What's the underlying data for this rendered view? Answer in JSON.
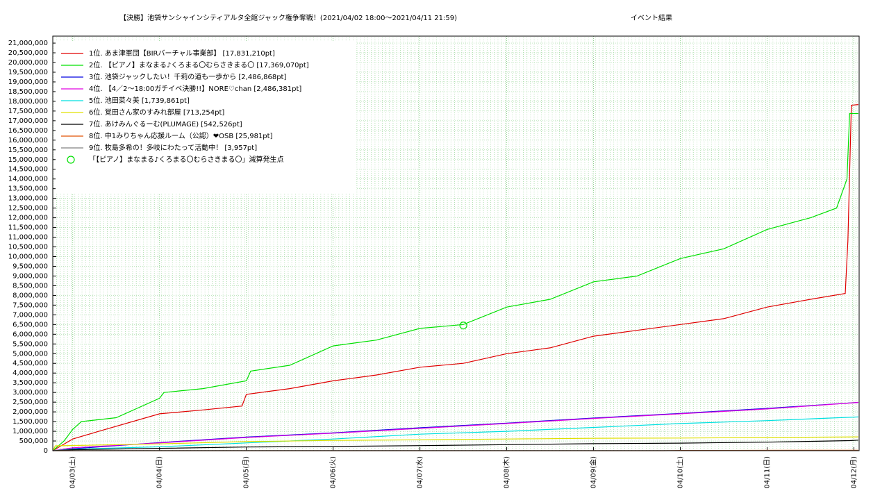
{
  "chart_data": {
    "type": "line",
    "title": "【決勝】池袋サンシャインシティアルタ全館ジャック権争奪戦！(2021/04/02 18:00〜2021/04/11 21:59)",
    "subtitle": "イベント結果",
    "xlim": [
      -0.23,
      9.06
    ],
    "xticks": [
      {
        "value": 0,
        "label": "04/03(土)"
      },
      {
        "value": 1,
        "label": "04/04(日)"
      },
      {
        "value": 2,
        "label": "04/05(月)"
      },
      {
        "value": 3,
        "label": "04/06(火)"
      },
      {
        "value": 4,
        "label": "04/07(水)"
      },
      {
        "value": 5,
        "label": "04/08(木)"
      },
      {
        "value": 6,
        "label": "04/09(金)"
      },
      {
        "value": 7,
        "label": "04/10(土)"
      },
      {
        "value": 8,
        "label": "04/11(日)"
      },
      {
        "value": 9,
        "label": "04/12(月)"
      }
    ],
    "ylim": [
      0,
      21360000
    ],
    "yticks": [
      {
        "value": 0,
        "label": "0"
      },
      {
        "value": 500000,
        "label": "500,000"
      },
      {
        "value": 1000000,
        "label": "1,000,000"
      },
      {
        "value": 1500000,
        "label": "1,500,000"
      },
      {
        "value": 2000000,
        "label": "2,000,000"
      },
      {
        "value": 2500000,
        "label": "2,500,000"
      },
      {
        "value": 3000000,
        "label": "3,000,000"
      },
      {
        "value": 3500000,
        "label": "3,500,000"
      },
      {
        "value": 4000000,
        "label": "4,000,000"
      },
      {
        "value": 4500000,
        "label": "4,500,000"
      },
      {
        "value": 5000000,
        "label": "5,000,000"
      },
      {
        "value": 5500000,
        "label": "5,500,000"
      },
      {
        "value": 6000000,
        "label": "6,000,000"
      },
      {
        "value": 6500000,
        "label": "6,500,000"
      },
      {
        "value": 7000000,
        "label": "7,000,000"
      },
      {
        "value": 7500000,
        "label": "7,500,000"
      },
      {
        "value": 8000000,
        "label": "8,000,000"
      },
      {
        "value": 8500000,
        "label": "8,500,000"
      },
      {
        "value": 9000000,
        "label": "9,000,000"
      },
      {
        "value": 9500000,
        "label": "9,500,000"
      },
      {
        "value": 10000000,
        "label": "10,000,000"
      },
      {
        "value": 10500000,
        "label": "10,500,000"
      },
      {
        "value": 11000000,
        "label": "11,000,000"
      },
      {
        "value": 11500000,
        "label": "11,500,000"
      },
      {
        "value": 12000000,
        "label": "12,000,000"
      },
      {
        "value": 12500000,
        "label": "12,500,000"
      },
      {
        "value": 13000000,
        "label": "13,000,000"
      },
      {
        "value": 13500000,
        "label": "13,500,000"
      },
      {
        "value": 14000000,
        "label": "14,000,000"
      },
      {
        "value": 14500000,
        "label": "14,500,000"
      },
      {
        "value": 15000000,
        "label": "15,000,000"
      },
      {
        "value": 15500000,
        "label": "15,500,000"
      },
      {
        "value": 16000000,
        "label": "16,000,000"
      },
      {
        "value": 16500000,
        "label": "16,500,000"
      },
      {
        "value": 17000000,
        "label": "17,000,000"
      },
      {
        "value": 17500000,
        "label": "17,500,000"
      },
      {
        "value": 18000000,
        "label": "18,000,000"
      },
      {
        "value": 18500000,
        "label": "18,500,000"
      },
      {
        "value": 19000000,
        "label": "19,000,000"
      },
      {
        "value": 19500000,
        "label": "19,500,000"
      },
      {
        "value": 20000000,
        "label": "20,000,000"
      },
      {
        "value": 20500000,
        "label": "20,500,000"
      },
      {
        "value": 21000000,
        "label": "21,000,000"
      }
    ],
    "grid": true,
    "legend": "top-left",
    "series": [
      {
        "name": "1位. あま津軍団【BIRバーチャル事業部】 [17,831,210pt]",
        "color": "#e00000",
        "x": [
          -0.23,
          0,
          0.3,
          1.0,
          1.5,
          1.95,
          2.0,
          2.5,
          3.0,
          3.5,
          4.0,
          4.5,
          5.0,
          5.5,
          6.0,
          6.5,
          7.0,
          7.5,
          8.0,
          8.5,
          8.9,
          8.93,
          8.97,
          9.05
        ],
        "values": [
          0,
          600000,
          1000000,
          1900000,
          2100000,
          2300000,
          2900000,
          3200000,
          3600000,
          3900000,
          4300000,
          4500000,
          5000000,
          5300000,
          5900000,
          6200000,
          6500000,
          6800000,
          7400000,
          7800000,
          8100000,
          10800000,
          17800000,
          17831210
        ]
      },
      {
        "name": "2位. 【ピアノ】まなまる♪くろまる〇むらさきまる〇 [17,369,070pt]",
        "color": "#00e000",
        "x": [
          -0.23,
          -0.1,
          0,
          0.1,
          0.5,
          1.0,
          1.05,
          1.5,
          2.0,
          2.05,
          2.5,
          3.0,
          3.5,
          4.0,
          4.5,
          5.0,
          5.5,
          6.0,
          6.5,
          7.0,
          7.5,
          8.0,
          8.5,
          8.8,
          8.92,
          8.95,
          9.05
        ],
        "values": [
          0,
          500000,
          1100000,
          1500000,
          1700000,
          2700000,
          3000000,
          3200000,
          3600000,
          4100000,
          4400000,
          5400000,
          5700000,
          6300000,
          6500000,
          7400000,
          7800000,
          8700000,
          9000000,
          9900000,
          10400000,
          11400000,
          12000000,
          12500000,
          14000000,
          17369070,
          17369070
        ]
      },
      {
        "name": "3位. 池袋ジャックしたい！千莉の道も一歩から [2,486,868pt]",
        "color": "#0000e0",
        "x": [
          -0.23,
          0,
          1,
          2,
          3,
          4,
          5,
          6,
          7,
          8,
          9.05
        ],
        "values": [
          0,
          100000,
          420000,
          700000,
          920000,
          1180000,
          1420000,
          1680000,
          1920000,
          2180000,
          2486868
        ]
      },
      {
        "name": "4位. 【4／2〜18:00ガチイベ決勝!!】NORE♡chan [2,486,381pt]",
        "color": "#e000e0",
        "x": [
          -0.23,
          0,
          1,
          2,
          3,
          4,
          5,
          6,
          7,
          8,
          9.05
        ],
        "values": [
          0,
          150000,
          400000,
          680000,
          900000,
          1150000,
          1400000,
          1660000,
          1900000,
          2150000,
          2486381
        ]
      },
      {
        "name": "5位. 池田菜々美 [1,739,861pt]",
        "color": "#00e0e0",
        "x": [
          -0.23,
          0,
          1,
          2,
          3,
          4,
          5,
          6,
          7,
          8,
          9.05
        ],
        "values": [
          0,
          80000,
          200000,
          400000,
          600000,
          850000,
          1000000,
          1200000,
          1400000,
          1550000,
          1739861
        ]
      },
      {
        "name": "6位. 覚田さん家のすみれ部屋 [713,254pt]",
        "color": "#e0e000",
        "x": [
          -0.23,
          -0.2,
          1,
          2,
          3,
          4,
          5,
          6,
          7,
          8,
          9.05
        ],
        "values": [
          0,
          250000,
          350000,
          470000,
          530000,
          560000,
          600000,
          640000,
          650000,
          680000,
          713254
        ]
      },
      {
        "name": "7位. あけみんぐるーむ(PLUMAGE) [542,526pt]",
        "color": "#000000",
        "x": [
          -0.23,
          0,
          1,
          2,
          3,
          4,
          5,
          6,
          7,
          8,
          8.95,
          9.05
        ],
        "values": [
          0,
          50000,
          120000,
          190000,
          220000,
          260000,
          310000,
          360000,
          390000,
          440000,
          520000,
          542526
        ]
      },
      {
        "name": "8位. 中1みりちゃん応援ルーム（公認）❤OSB [25,981pt]",
        "color": "#e05000",
        "x": [
          -0.23,
          6.8,
          7.0,
          9.05
        ],
        "values": [
          0,
          0,
          15000,
          25981
        ]
      },
      {
        "name": "9位. 牧島多希の！多岐にわたって活動中！ [3,957pt]",
        "color": "#808080",
        "x": [
          -0.23,
          9.05
        ],
        "values": [
          3957,
          3957
        ]
      }
    ],
    "markers": [
      {
        "label": "「【ピアノ】まなまる♪くろまる〇むらさきまる〇」減算発生点",
        "color": "#00e000",
        "x": [
          4.5
        ],
        "values": [
          6450000
        ]
      }
    ]
  }
}
